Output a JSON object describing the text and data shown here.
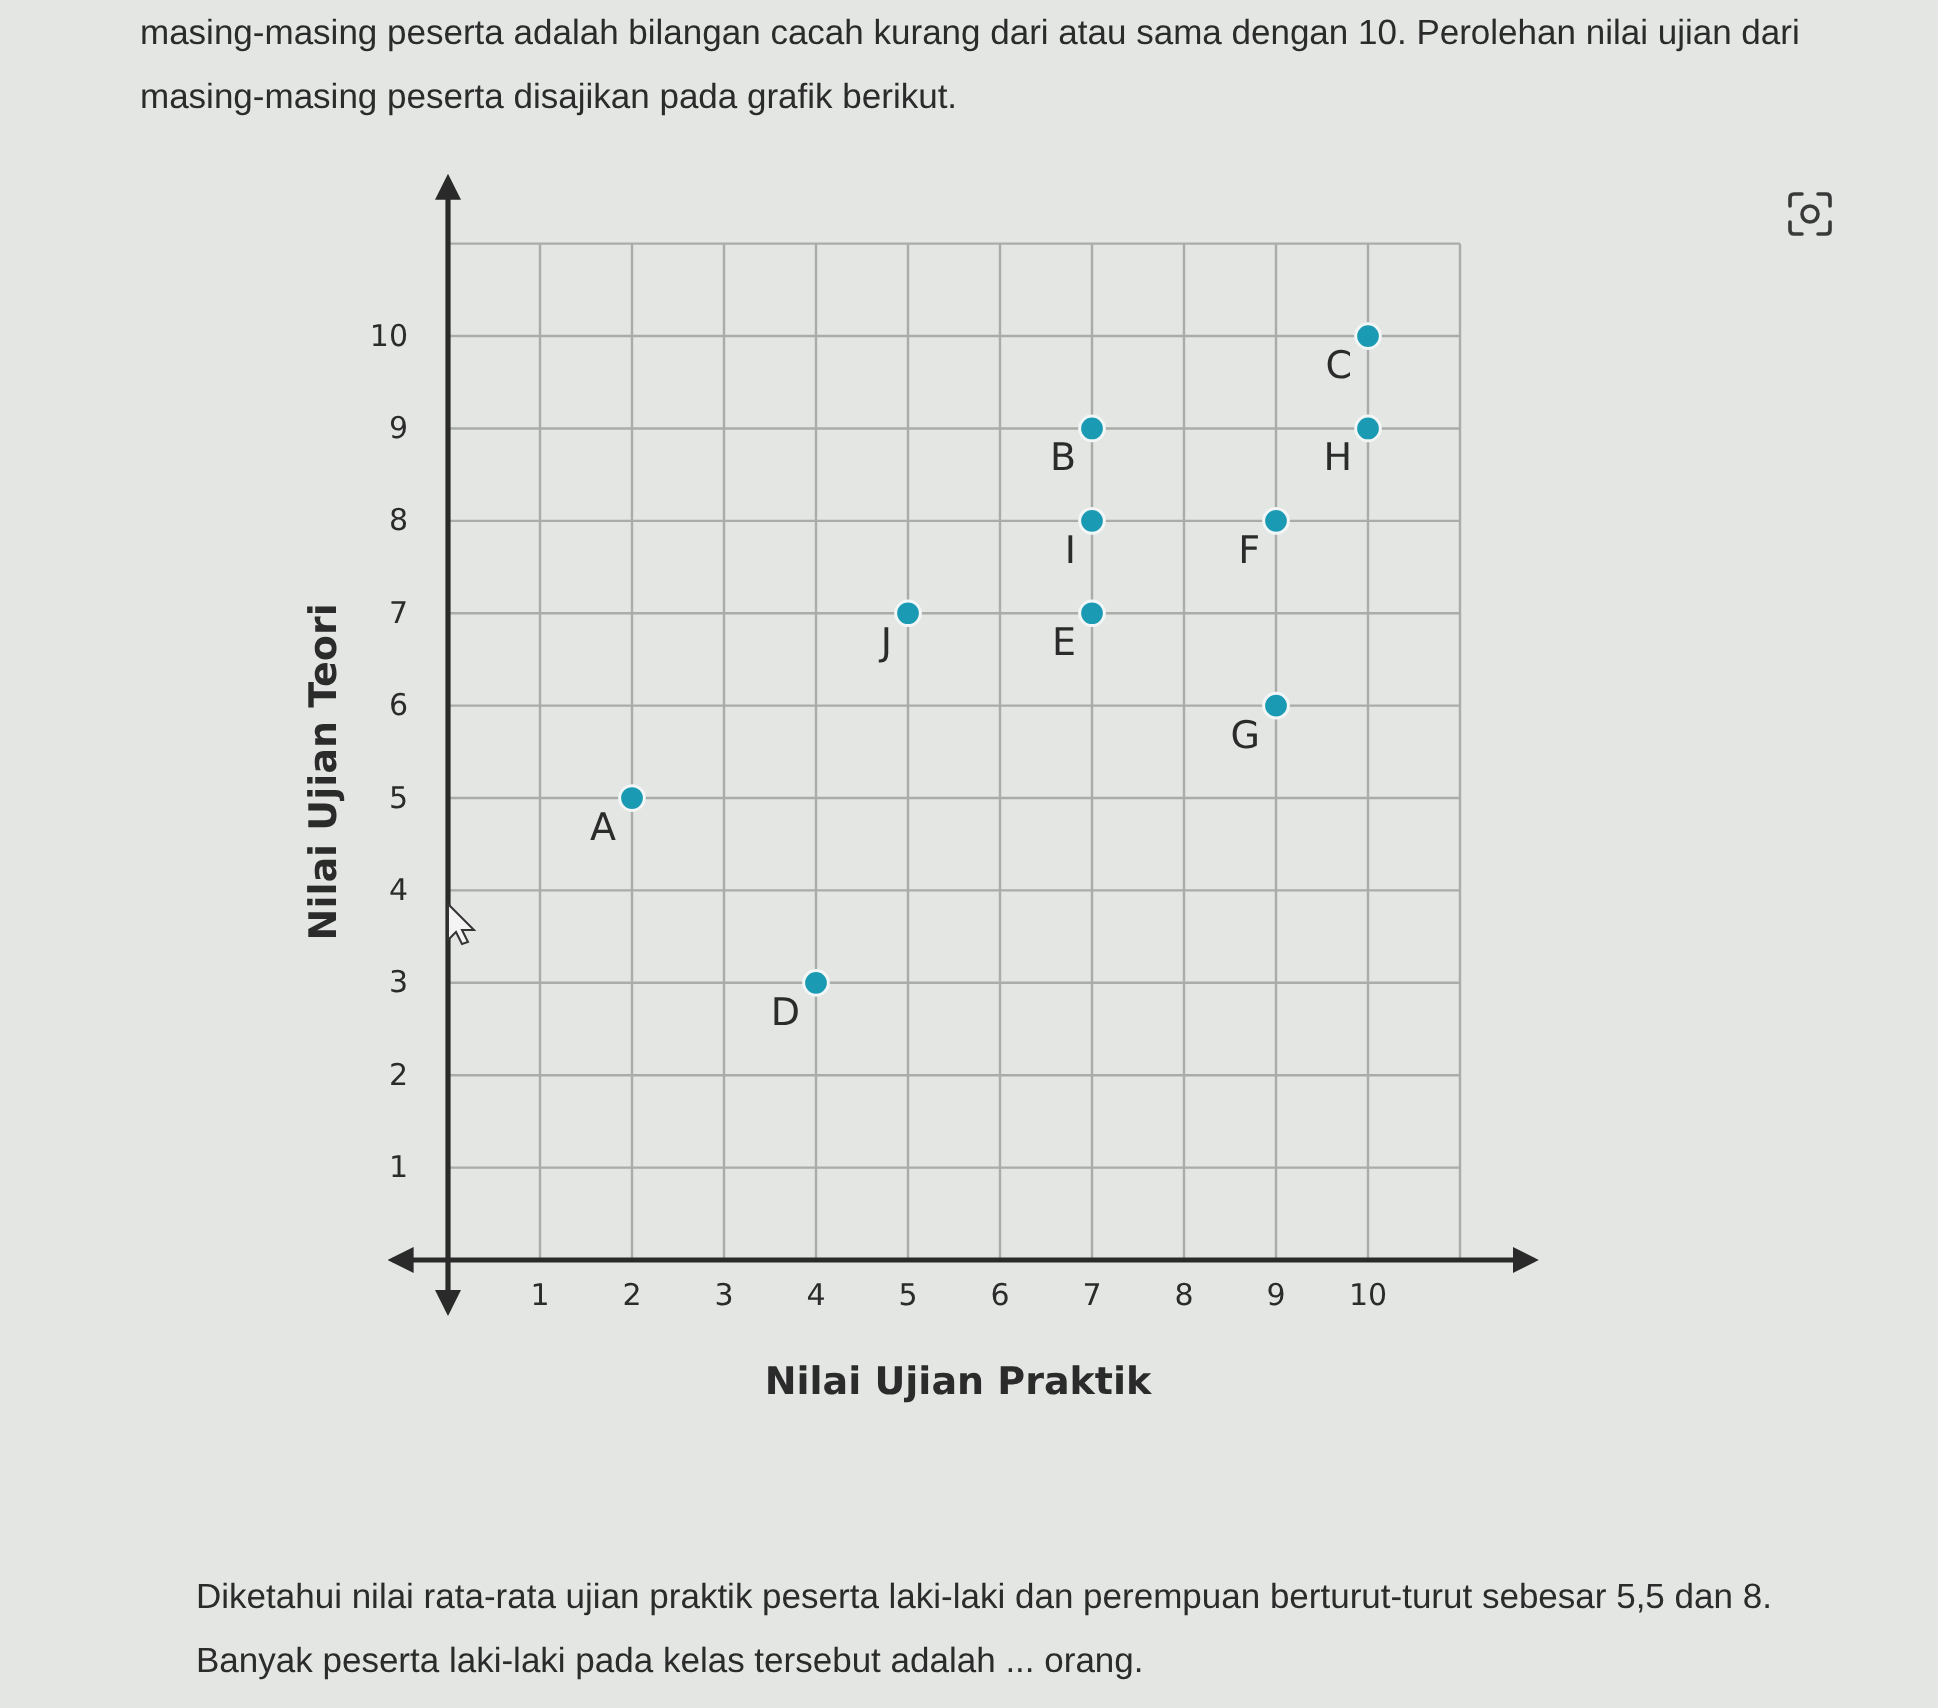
{
  "chart_data": {
    "type": "scatter",
    "title": "masing-masing peserta adalah bilangan cacah kurang dari atau sama dengan 10. Perolehan nilai ujian dari masing-masing peserta disajikan pada grafik berikut.",
    "xlabel": "Nilai Ujian Praktik",
    "ylabel": "Nilai Ujian Teori",
    "x": [
      2,
      7,
      10,
      4,
      7,
      9,
      9,
      10,
      7,
      5
    ],
    "values": [
      5,
      9,
      10,
      3,
      7,
      8,
      6,
      9,
      8,
      7
    ],
    "color": "#1b9bb3",
    "marker": "circle",
    "grid": true,
    "xlim": [
      -0.6,
      11.8
    ],
    "ylim": [
      -0.55,
      11.7
    ],
    "xticks": [
      1,
      2,
      3,
      4,
      5,
      6,
      7,
      8,
      9,
      10,
      {
        "value": 11,
        "label": null
      }
    ],
    "yticks": [
      1,
      2,
      3,
      4,
      5,
      6,
      7,
      8,
      9,
      10,
      {
        "value": 11,
        "label": null
      }
    ],
    "annotations": [
      {
        "text": "A",
        "x": 2,
        "y": 5
      },
      {
        "text": "B",
        "x": 7,
        "y": 9
      },
      {
        "text": "C",
        "x": 10,
        "y": 10
      },
      {
        "text": "D",
        "x": 4,
        "y": 3
      },
      {
        "text": "E",
        "x": 7,
        "y": 7
      },
      {
        "text": "F",
        "x": 9,
        "y": 8
      },
      {
        "text": "G",
        "x": 9,
        "y": 6
      },
      {
        "text": "H",
        "x": 10,
        "y": 9
      },
      {
        "text": "I",
        "x": 7,
        "y": 8
      },
      {
        "text": "J",
        "x": 5,
        "y": 7
      },
      "Diketahui nilai rata-rata ujian praktik peserta laki-laki dan perempuan berturut-turut sebesar 5,5 dan 8. Banyak peserta laki-laki pada kelas tersebut adalah ... orang."
    ]
  }
}
